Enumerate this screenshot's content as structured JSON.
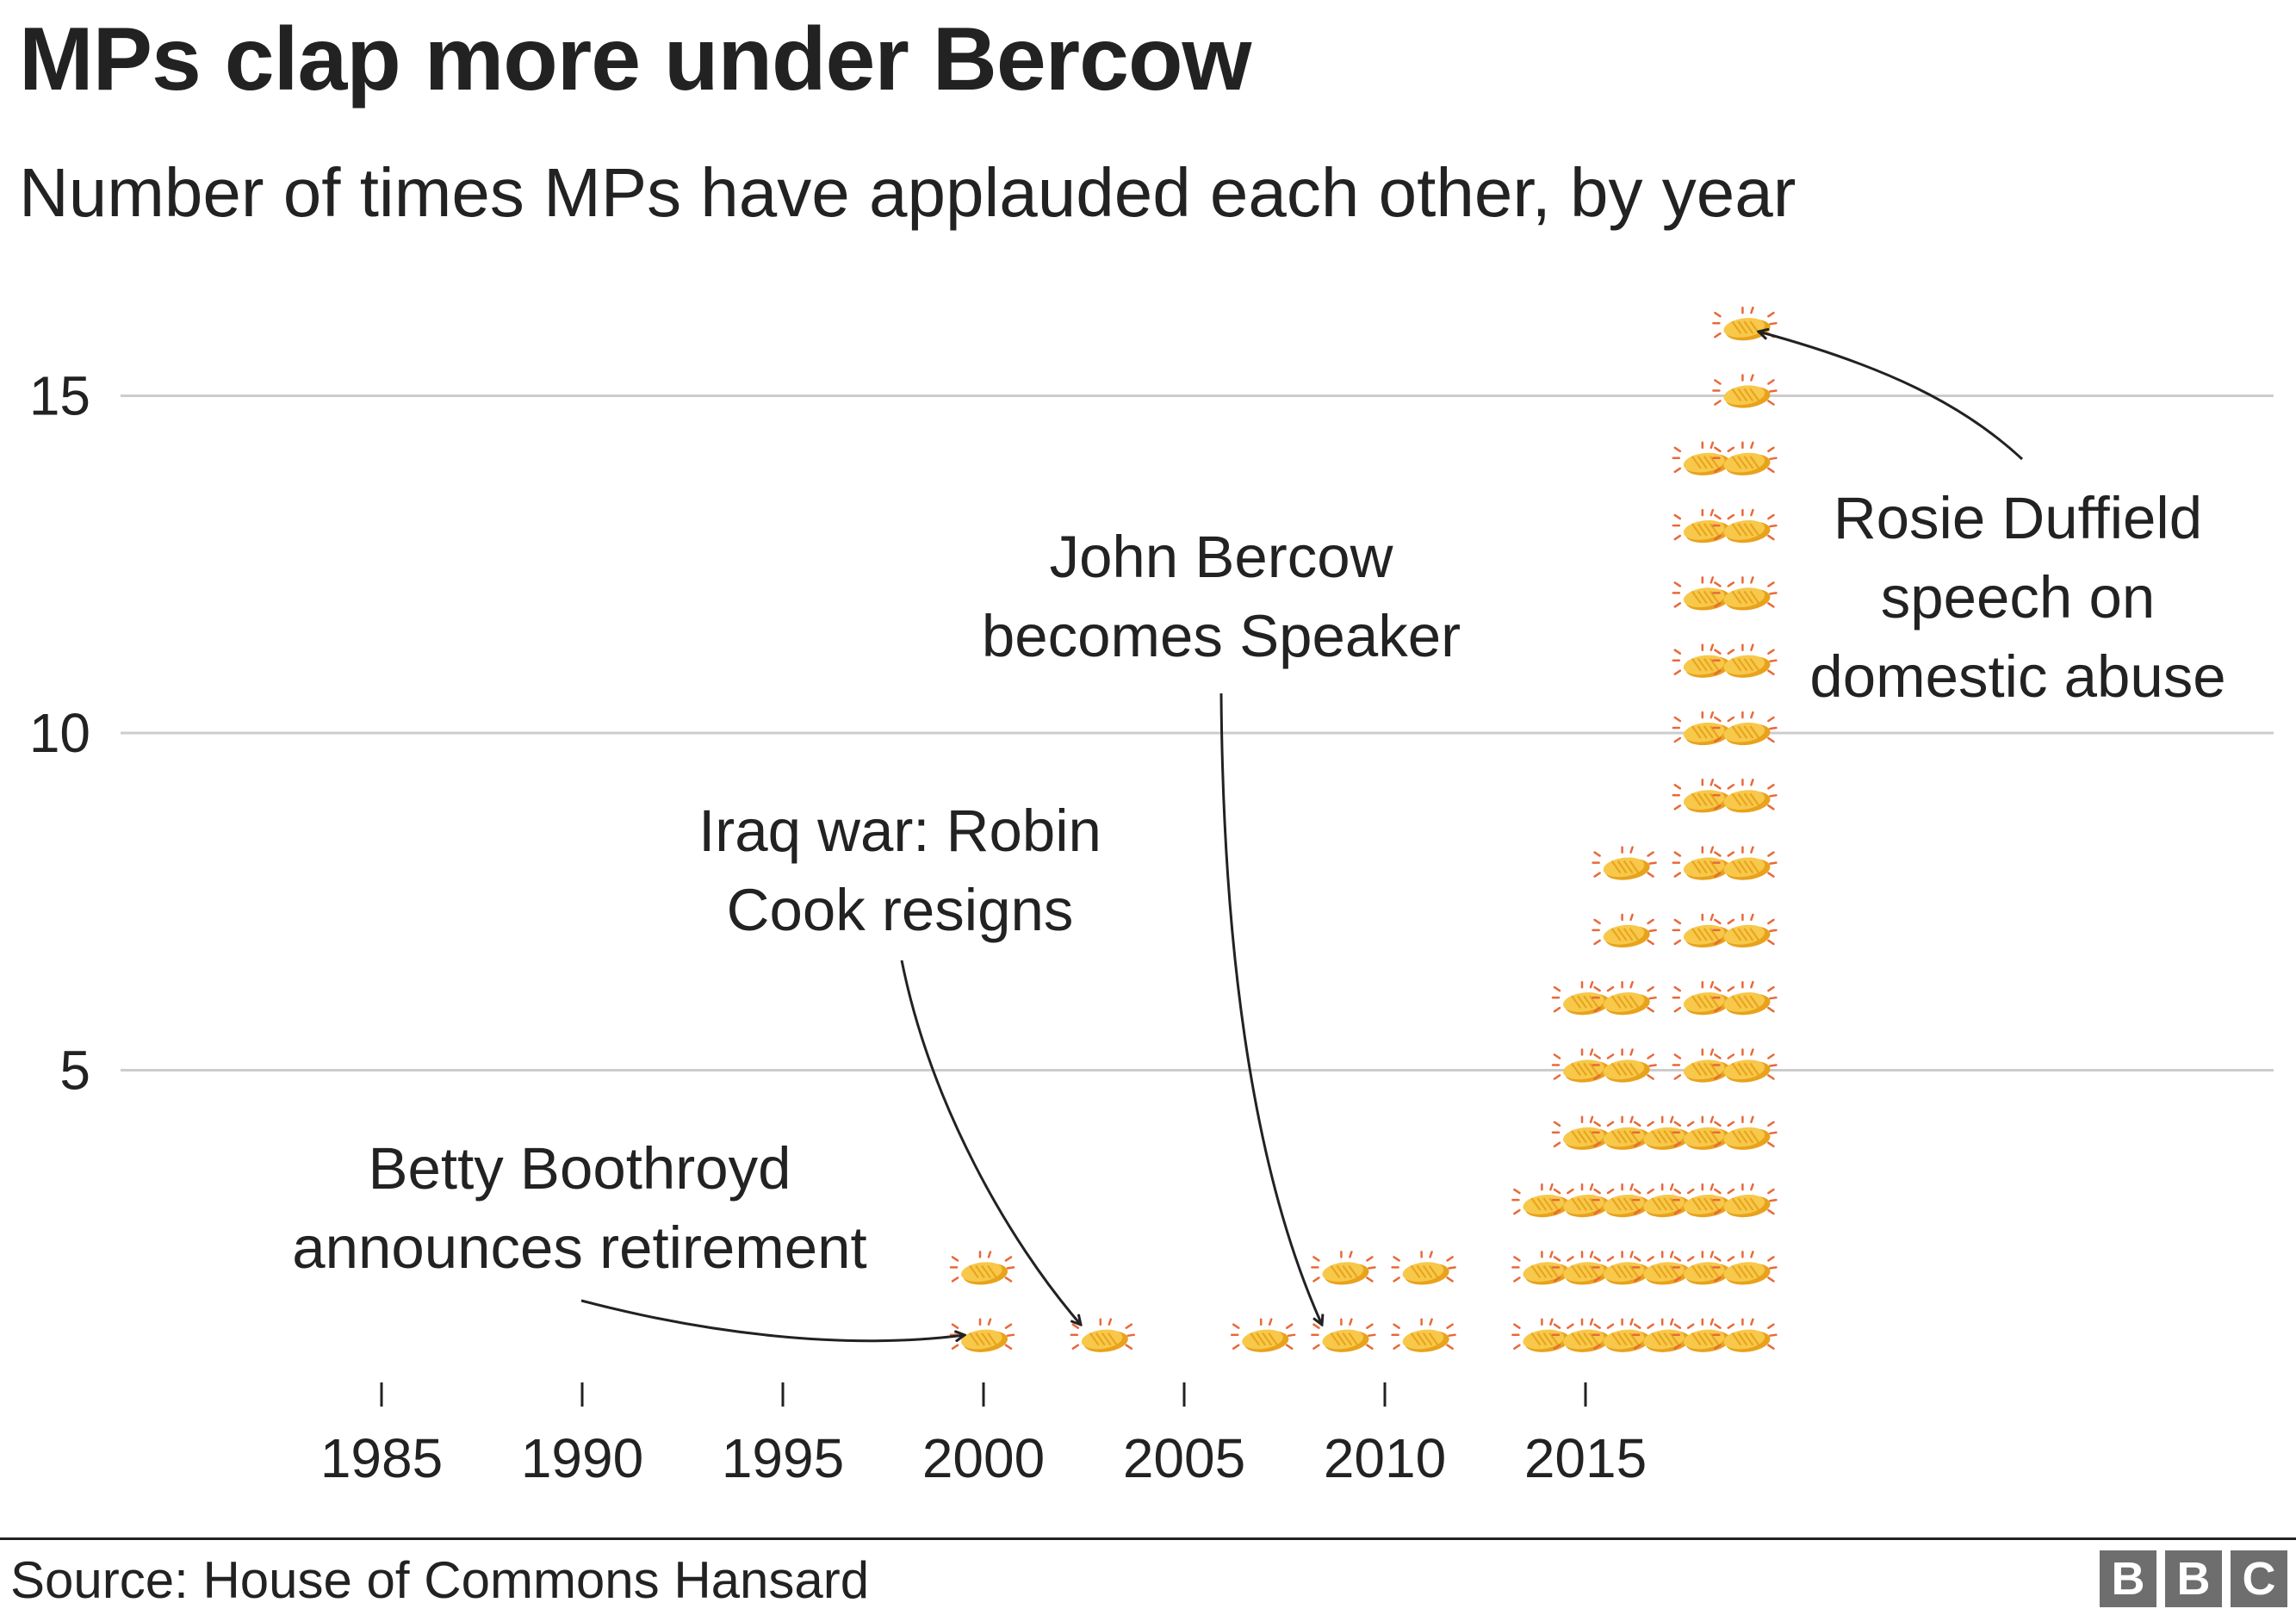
{
  "title": "MPs clap more under Bercow",
  "subtitle": "Number of times MPs have applauded each other, by year",
  "source": "Source: House of Commons Hansard",
  "logo": [
    "B",
    "B",
    "C"
  ],
  "colors": {
    "clap": "#f7c84a",
    "clap_dark": "#e8a21c",
    "ray": "#e8693a",
    "grid": "#cccccc",
    "text": "#222222",
    "logo": "#6e6e6e"
  },
  "icon": "clapping-hands-icon",
  "chart_data": {
    "type": "pictogram",
    "title": "MPs clap more under Bercow",
    "subtitle": "Number of times MPs have applauded each other, by year",
    "xlim": [
      1985,
      2019
    ],
    "ylim": [
      0,
      16
    ],
    "x_ticks": [
      "1985",
      "1990",
      "1995",
      "2000",
      "2005",
      "2010",
      "2015"
    ],
    "y_ticks": [
      "5",
      "10",
      "15"
    ],
    "y_tick_values": [
      5,
      10,
      15
    ],
    "x_tick_values": [
      1985,
      1990,
      1995,
      2000,
      2005,
      2010,
      2015
    ],
    "grid": true,
    "stacks": [
      {
        "y": 1,
        "years": [
          2000,
          2003,
          2007,
          2009,
          2011,
          2014,
          2015,
          2016,
          2017,
          2018,
          2019
        ]
      },
      {
        "y": 2,
        "years": [
          2000,
          2009,
          2011,
          2014,
          2015,
          2016,
          2017,
          2018,
          2019
        ]
      },
      {
        "y": 3,
        "years": [
          2014,
          2015,
          2016,
          2017,
          2018,
          2019
        ]
      },
      {
        "y": 4,
        "years": [
          2015,
          2016,
          2017,
          2018,
          2019
        ]
      },
      {
        "y": 5,
        "years": [
          2015,
          2016,
          2018,
          2019
        ]
      },
      {
        "y": 6,
        "years": [
          2015,
          2016,
          2018,
          2019
        ]
      },
      {
        "y": 7,
        "years": [
          2016,
          2018,
          2019
        ]
      },
      {
        "y": 8,
        "years": [
          2016,
          2018,
          2019
        ]
      },
      {
        "y": 9,
        "years": [
          2018,
          2019
        ]
      },
      {
        "y": 10,
        "years": [
          2018,
          2019
        ]
      },
      {
        "y": 11,
        "years": [
          2018,
          2019
        ]
      },
      {
        "y": 12,
        "years": [
          2018,
          2019
        ]
      },
      {
        "y": 13,
        "years": [
          2018,
          2019
        ]
      },
      {
        "y": 14,
        "years": [
          2018,
          2019
        ]
      },
      {
        "y": 15,
        "years": [
          2019
        ]
      },
      {
        "y": 16,
        "years": [
          2019
        ]
      }
    ],
    "annotations": [
      {
        "lines": [
          "Betty Boothroyd",
          "announces retirement"
        ],
        "target": [
          2000,
          1
        ]
      },
      {
        "lines": [
          "Iraq war: Robin",
          "Cook resigns"
        ],
        "target": [
          2003,
          1
        ]
      },
      {
        "lines": [
          "John Bercow",
          "becomes Speaker"
        ],
        "target": [
          2009,
          1
        ]
      },
      {
        "lines": [
          "Rosie Duffield",
          "speech on",
          "domestic abuse"
        ],
        "target": [
          2019,
          16
        ]
      }
    ]
  }
}
